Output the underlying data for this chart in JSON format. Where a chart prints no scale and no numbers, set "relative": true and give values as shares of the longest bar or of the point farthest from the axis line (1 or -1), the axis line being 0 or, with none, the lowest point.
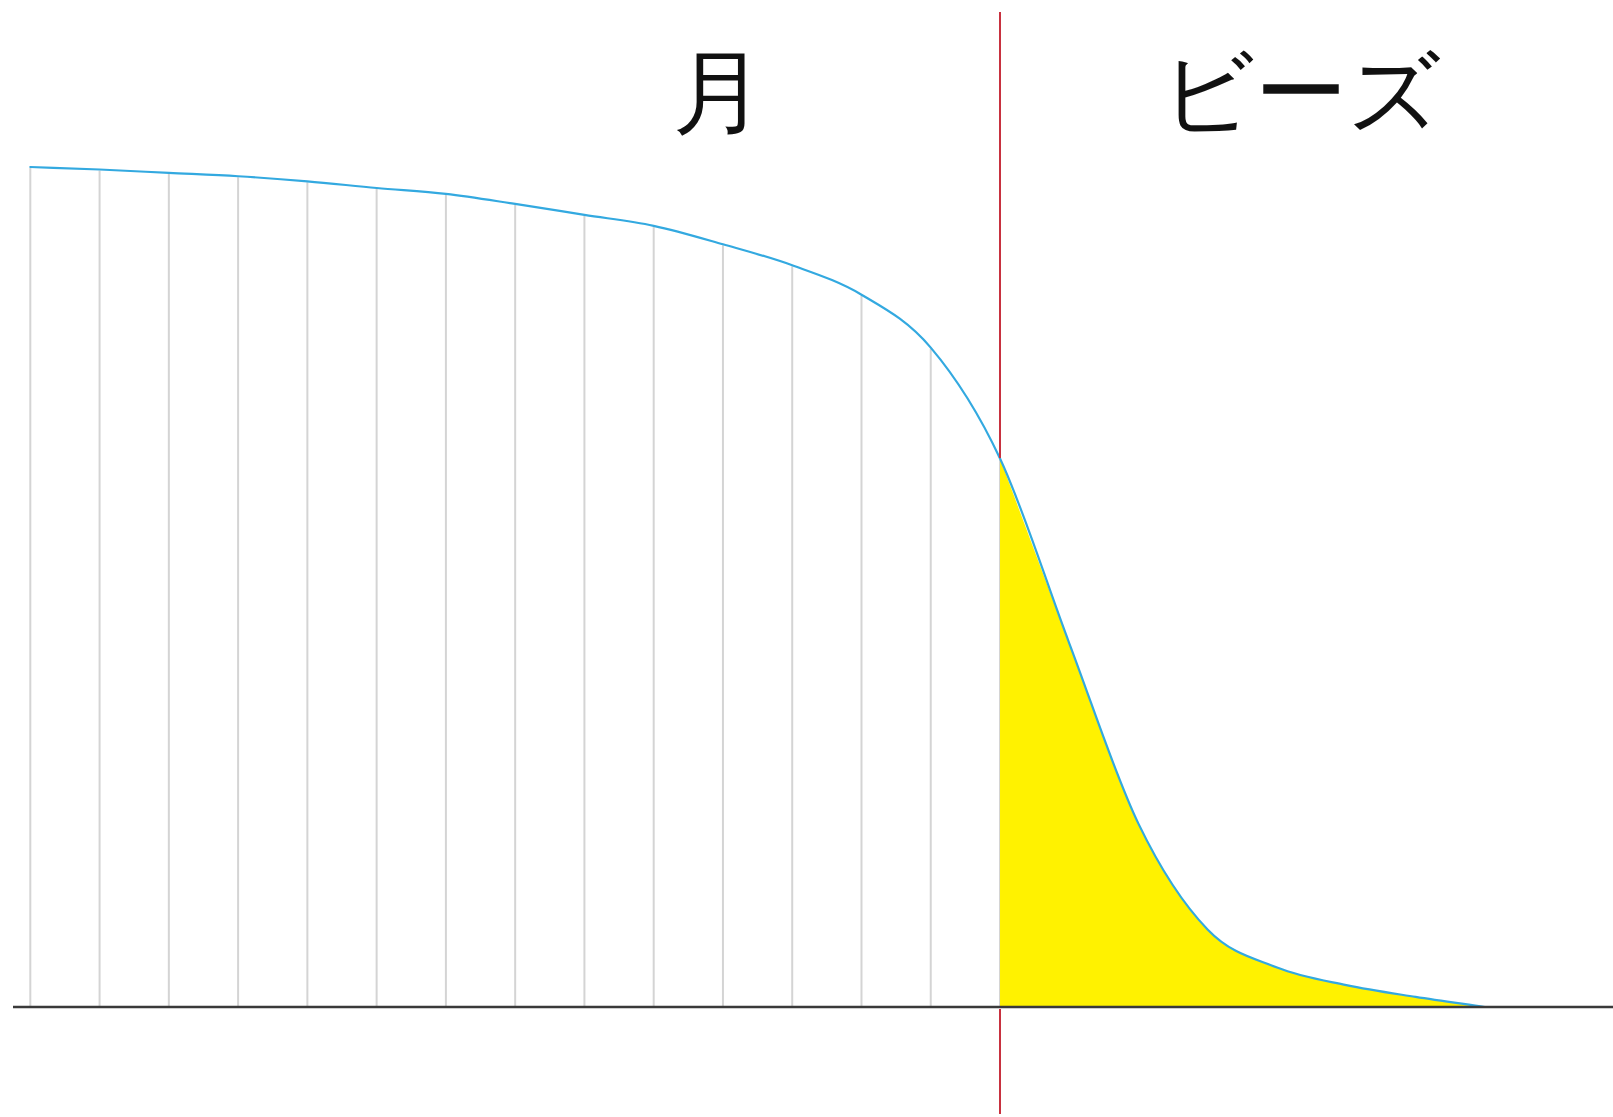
{
  "chart_data": {
    "type": "line",
    "relative": true,
    "categories": [
      null,
      null,
      null,
      null,
      null,
      null,
      null,
      null,
      null,
      null,
      null,
      null,
      null,
      null,
      null,
      null,
      null,
      null,
      null,
      null,
      null,
      null
    ],
    "series": [
      {
        "type": "area",
        "color": "#fff200",
        "values": [
          null,
          null,
          null,
          null,
          null,
          null,
          null,
          null,
          null,
          null,
          null,
          null,
          null,
          null,
          0.653,
          0.433,
          0.218,
          0.092,
          0.047,
          0.026,
          0.012,
          0
        ]
      },
      {
        "color": "#33a9e0",
        "values": [
          1,
          0.997,
          0.993,
          0.989,
          0.983,
          0.975,
          0.968,
          0.956,
          0.943,
          0.93,
          0.908,
          0.883,
          0.848,
          0.785,
          0.653,
          0.433,
          0.218,
          0.092,
          0.047,
          0.026,
          0.012,
          0
        ]
      }
    ],
    "annotations": [
      "月",
      "ビーズ"
    ],
    "grid": "x",
    "legend": false
  }
}
